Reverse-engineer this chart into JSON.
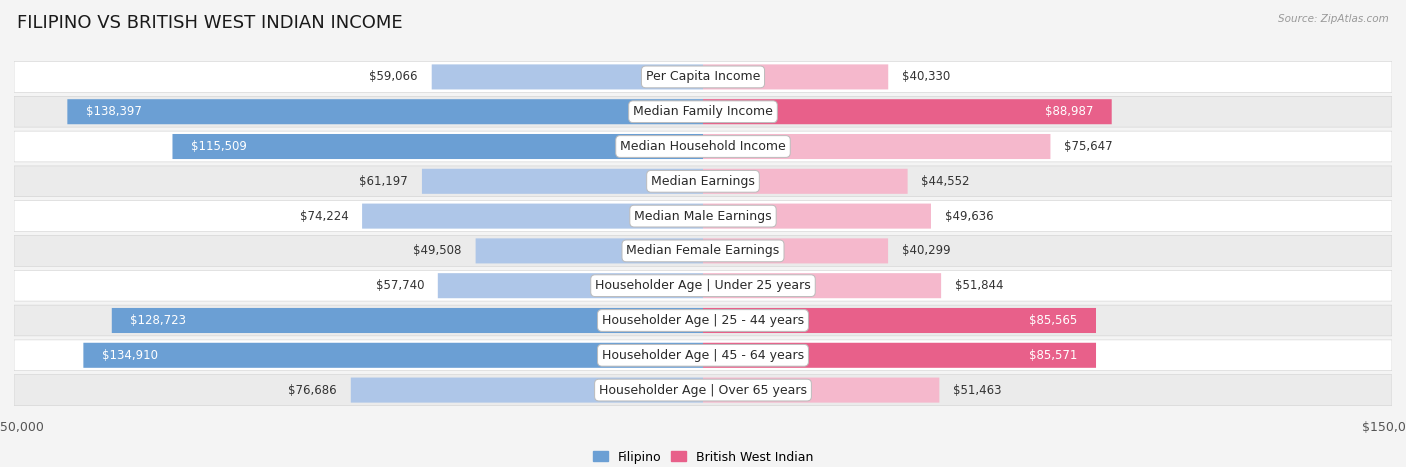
{
  "title": "FILIPINO VS BRITISH WEST INDIAN INCOME",
  "source": "Source: ZipAtlas.com",
  "categories": [
    "Per Capita Income",
    "Median Family Income",
    "Median Household Income",
    "Median Earnings",
    "Median Male Earnings",
    "Median Female Earnings",
    "Householder Age | Under 25 years",
    "Householder Age | 25 - 44 years",
    "Householder Age | 45 - 64 years",
    "Householder Age | Over 65 years"
  ],
  "filipino_values": [
    59066,
    138397,
    115509,
    61197,
    74224,
    49508,
    57740,
    128723,
    134910,
    76686
  ],
  "bwi_values": [
    40330,
    88987,
    75647,
    44552,
    49636,
    40299,
    51844,
    85565,
    85571,
    51463
  ],
  "filipino_color_light": "#aec6e8",
  "filipino_color_dark": "#6b9fd4",
  "bwi_color_light": "#f5b8cc",
  "bwi_color_dark": "#e8608a",
  "max_value": 150000,
  "background_color": "#f4f4f4",
  "row_bg_even": "#ffffff",
  "row_bg_odd": "#ebebeb",
  "row_border_color": "#d0d0d0",
  "title_fontsize": 13,
  "label_fontsize": 9,
  "value_fontsize": 8.5,
  "legend_fontsize": 9,
  "dark_threshold_fil": 100000,
  "dark_threshold_bwi": 80000
}
